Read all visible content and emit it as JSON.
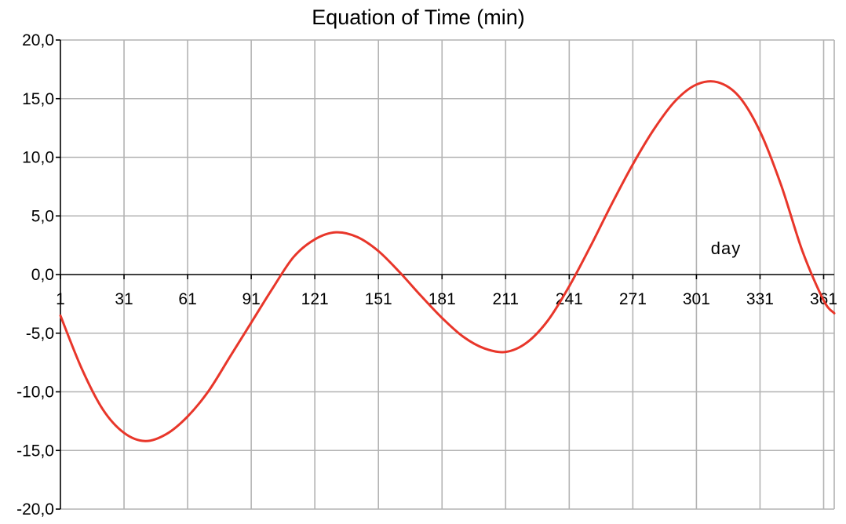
{
  "chart_data": {
    "type": "line",
    "title": "Equation of Time (min)",
    "xlabel": "day",
    "ylabel": "",
    "xlim": [
      1,
      366
    ],
    "ylim": [
      -20,
      20
    ],
    "y_ticks": [
      -20,
      -15,
      -10,
      -5,
      0,
      5,
      10,
      15,
      20
    ],
    "y_tick_labels": [
      "-20,0",
      "-15,0",
      "-10,0",
      "-5,0",
      "0,0",
      "5,0",
      "10,0",
      "15,0",
      "20,0"
    ],
    "x_ticks": [
      1,
      31,
      61,
      91,
      121,
      151,
      181,
      211,
      241,
      271,
      301,
      331,
      361
    ],
    "x_tick_labels": [
      "1",
      "31",
      "61",
      "91",
      "121",
      "151",
      "181",
      "211",
      "241",
      "271",
      "301",
      "331",
      "361"
    ],
    "grid": true,
    "legend": "none",
    "colors": {
      "series": "#e8362a",
      "grid": "#b3b3b3",
      "axis": "#000000"
    },
    "series": [
      {
        "values_x": [
          1,
          11,
          21,
          31,
          41,
          51,
          61,
          71,
          81,
          91,
          101,
          111,
          121,
          131,
          141,
          151,
          161,
          171,
          181,
          191,
          201,
          211,
          221,
          231,
          241,
          251,
          261,
          271,
          281,
          291,
          301,
          311,
          321,
          331,
          341,
          351,
          361,
          366
        ],
        "values_y": [
          -3.5,
          -8.0,
          -11.5,
          -13.5,
          -14.2,
          -13.6,
          -12.1,
          -9.9,
          -7.0,
          -4.1,
          -1.2,
          1.5,
          3.0,
          3.6,
          3.2,
          2.0,
          0.2,
          -1.8,
          -3.7,
          -5.3,
          -6.3,
          -6.6,
          -5.8,
          -3.9,
          -1.0,
          2.4,
          6.0,
          9.4,
          12.4,
          14.8,
          16.2,
          16.4,
          15.2,
          12.2,
          7.6,
          2.0,
          -2.2,
          -3.3
        ]
      }
    ]
  }
}
